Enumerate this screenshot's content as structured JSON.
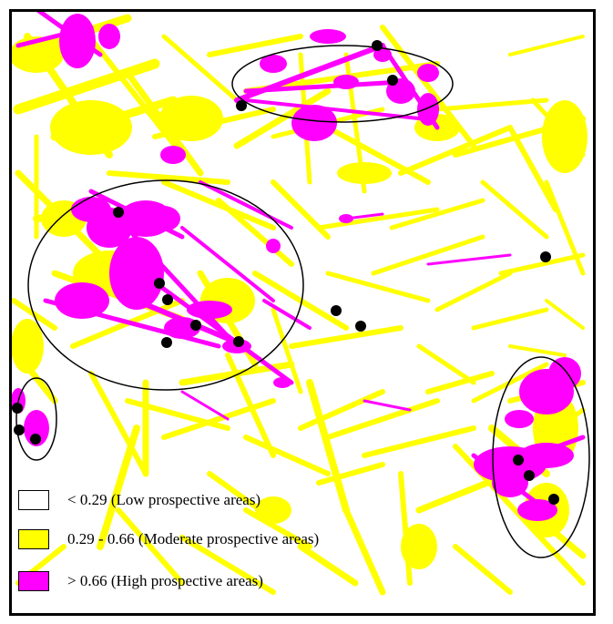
{
  "map": {
    "colors": {
      "low": "#ffffff",
      "moderate": "#ffff00",
      "high": "#ff00ff",
      "border": "#000000",
      "ellipse": "#000000",
      "point": "#000000"
    }
  },
  "legend": [
    {
      "label": "< 0.29  (Low prospective areas)",
      "color": "#ffffff"
    },
    {
      "label": "0.29 - 0.66 (Moderate prospective areas)",
      "color": "#ffff00"
    },
    {
      "label": "> 0.66  (High prospective areas)",
      "color": "#ff00ff"
    }
  ]
}
